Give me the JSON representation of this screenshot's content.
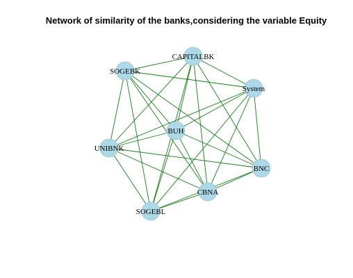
{
  "title": "Network of similarity of the banks,considering the variable Equity",
  "graph": {
    "node_color": "#add8e6",
    "node_border_color": "#9ec3d3",
    "edge_color": "#1a7a1a",
    "nodes": [
      {
        "id": "CAPITALBK",
        "label": "CAPITALBK"
      },
      {
        "id": "SOGEBK",
        "label": "SOGEBK"
      },
      {
        "id": "System",
        "label": "System"
      },
      {
        "id": "BUH",
        "label": "BUH"
      },
      {
        "id": "UNIBNK",
        "label": "UNIBNK"
      },
      {
        "id": "BNC",
        "label": "BNC"
      },
      {
        "id": "CBNA",
        "label": "CBNA"
      },
      {
        "id": "SOGEBL",
        "label": "SOGEBL"
      }
    ],
    "edges": [
      [
        "CAPITALBK",
        "SOGEBK"
      ],
      [
        "CAPITALBK",
        "System"
      ],
      [
        "CAPITALBK",
        "BUH"
      ],
      [
        "CAPITALBK",
        "UNIBNK"
      ],
      [
        "CAPITALBK",
        "BNC"
      ],
      [
        "CAPITALBK",
        "CBNA"
      ],
      [
        "CAPITALBK",
        "SOGEBL"
      ],
      [
        "SOGEBK",
        "System"
      ],
      [
        "SOGEBK",
        "BUH"
      ],
      [
        "SOGEBK",
        "UNIBNK"
      ],
      [
        "SOGEBK",
        "BNC"
      ],
      [
        "SOGEBK",
        "CBNA"
      ],
      [
        "SOGEBK",
        "SOGEBL"
      ],
      [
        "System",
        "BUH"
      ],
      [
        "System",
        "UNIBNK"
      ],
      [
        "System",
        "BNC"
      ],
      [
        "System",
        "CBNA"
      ],
      [
        "System",
        "SOGEBL"
      ],
      [
        "BUH",
        "UNIBNK"
      ],
      [
        "BUH",
        "BNC"
      ],
      [
        "BUH",
        "CBNA"
      ],
      [
        "BUH",
        "SOGEBL"
      ],
      [
        "UNIBNK",
        "BNC"
      ],
      [
        "UNIBNK",
        "CBNA"
      ],
      [
        "UNIBNK",
        "SOGEBL"
      ],
      [
        "BNC",
        "CBNA"
      ],
      [
        "BNC",
        "SOGEBL"
      ],
      [
        "CBNA",
        "SOGEBL"
      ]
    ]
  }
}
